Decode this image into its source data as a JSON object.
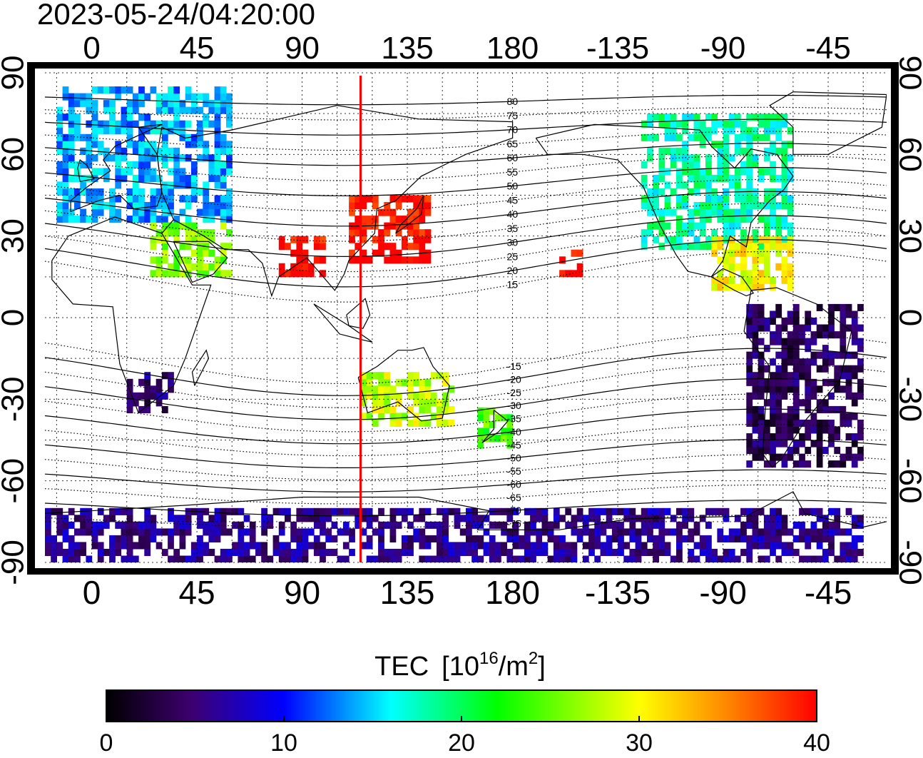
{
  "header": {
    "timestamp": "2023-05-24/04:20:00"
  },
  "map": {
    "lon_ticks": [
      "0",
      "45",
      "90",
      "135",
      "180",
      "-135",
      "-90",
      "-45"
    ],
    "lat_ticks": [
      "90",
      "60",
      "30",
      "0",
      "-30",
      "-60",
      "-90"
    ],
    "lon_range": [
      -20,
      340
    ],
    "lat_range": [
      -90,
      90
    ],
    "subsolar_meridian_lon": 115,
    "meridian_color": "#ff0000",
    "magnetic_latitude_labels": [
      "80",
      "75",
      "70",
      "65",
      "60",
      "55",
      "50",
      "45",
      "40",
      "35",
      "30",
      "25",
      "20",
      "15",
      "-15",
      "-20",
      "-25",
      "-30",
      "-35",
      "-40",
      "-45",
      "-50",
      "-55",
      "-60",
      "-65",
      "-70",
      "-75"
    ]
  },
  "colorbar": {
    "title": "TEC",
    "unit_base": "[10",
    "unit_exp": "16",
    "unit_mid": "/m",
    "unit_exp2": "2",
    "unit_end": "]",
    "ticks": [
      "0",
      "10",
      "20",
      "30",
      "40"
    ],
    "range": [
      0,
      40
    ],
    "colormap": [
      "#000000",
      "#3d0070",
      "#0000ff",
      "#00ffff",
      "#00ff00",
      "#ffff00",
      "#ff0000"
    ]
  },
  "tec_regions": [
    {
      "region": "europe",
      "lon": [
        -15,
        60
      ],
      "lat": [
        35,
        85
      ],
      "tec": 14
    },
    {
      "region": "middle-east",
      "lon": [
        25,
        60
      ],
      "lat": [
        15,
        35
      ],
      "tec": 26
    },
    {
      "region": "east-asia",
      "lon": [
        110,
        145
      ],
      "lat": [
        20,
        45
      ],
      "tec": 40
    },
    {
      "region": "south-asia",
      "lon": [
        80,
        100
      ],
      "lat": [
        15,
        30
      ],
      "tec": 40
    },
    {
      "region": "north-america",
      "lon": [
        235,
        300
      ],
      "lat": [
        25,
        75
      ],
      "tec": 18
    },
    {
      "region": "caribbean",
      "lon": [
        265,
        300
      ],
      "lat": [
        10,
        30
      ],
      "tec": 30
    },
    {
      "region": "south-america",
      "lon": [
        280,
        330
      ],
      "lat": [
        -55,
        5
      ],
      "tec": 4
    },
    {
      "region": "australia",
      "lon": [
        115,
        155
      ],
      "lat": [
        -40,
        -20
      ],
      "tec": 28
    },
    {
      "region": "new-zealand",
      "lon": [
        165,
        180
      ],
      "lat": [
        -48,
        -35
      ],
      "tec": 24
    },
    {
      "region": "antarctica",
      "lon": [
        -20,
        330
      ],
      "lat": [
        -90,
        -70
      ],
      "tec": 6
    },
    {
      "region": "southern-africa",
      "lon": [
        15,
        35
      ],
      "lat": [
        -35,
        -20
      ],
      "tec": 5
    },
    {
      "region": "hawaii",
      "lon": [
        200,
        210
      ],
      "lat": [
        15,
        25
      ],
      "tec": 40
    }
  ]
}
